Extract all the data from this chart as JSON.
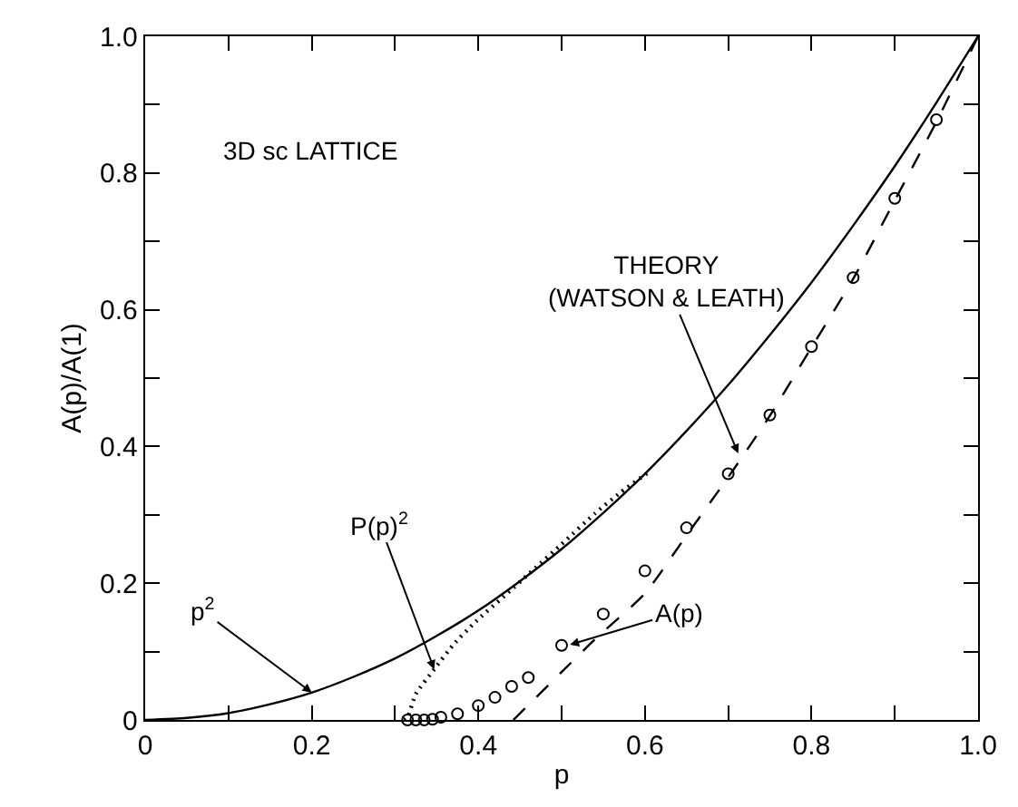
{
  "chart_data": {
    "type": "line",
    "xlabel": "p",
    "ylabel": "A(p)/A(1)",
    "xlim": [
      0,
      1
    ],
    "ylim": [
      0,
      1
    ],
    "xticks": [
      0,
      {
        "value": 0.1,
        "label": null
      },
      0.2,
      {
        "value": 0.3,
        "label": null
      },
      0.4,
      {
        "value": 0.5,
        "label": null
      },
      0.6,
      {
        "value": 0.7,
        "label": null
      },
      0.8,
      {
        "value": 0.9,
        "label": null
      },
      {
        "value": 1,
        "label": "1.0"
      }
    ],
    "yticks": [
      0,
      {
        "value": 0.1,
        "label": null
      },
      0.2,
      {
        "value": 0.3,
        "label": null
      },
      0.4,
      {
        "value": 0.5,
        "label": null
      },
      0.6,
      {
        "value": 0.7,
        "label": null
      },
      0.8,
      {
        "value": 0.9,
        "label": null
      },
      {
        "value": 1,
        "label": "1.0"
      }
    ],
    "series": [
      {
        "color": "#000000",
        "line_style": "solid",
        "marker": "none",
        "x": [
          0,
          0.05,
          0.1,
          0.15,
          0.2,
          0.25,
          0.3,
          0.35,
          0.4,
          0.45,
          0.5,
          0.55,
          0.6,
          0.65,
          0.7,
          0.75,
          0.8,
          0.85,
          0.9,
          0.95,
          1
        ],
        "values": [
          0,
          0.003,
          0.01,
          0.023,
          0.04,
          0.063,
          0.09,
          0.123,
          0.16,
          0.203,
          0.25,
          0.303,
          0.36,
          0.423,
          0.49,
          0.563,
          0.64,
          0.723,
          0.81,
          0.903,
          1
        ]
      },
      {
        "color": "#000000",
        "line_style": "dashed",
        "marker": "none",
        "x": [
          0.442,
          0.5,
          0.54,
          0.6,
          0.65,
          0.7,
          0.75,
          0.8,
          0.85,
          0.9,
          0.95,
          1
        ],
        "values": [
          0,
          0.07,
          0.118,
          0.185,
          0.27,
          0.355,
          0.445,
          0.545,
          0.645,
          0.76,
          0.875,
          1
        ]
      },
      {
        "color": "#000000",
        "line_style": "dotted",
        "marker": "none",
        "x": [
          0.311,
          0.315,
          0.325,
          0.347,
          0.37,
          0.397,
          0.43,
          0.469,
          0.5,
          0.54,
          0.57,
          0.605
        ],
        "values": [
          0,
          0.004,
          0.038,
          0.074,
          0.11,
          0.144,
          0.18,
          0.223,
          0.257,
          0.302,
          0.332,
          0.363
        ]
      },
      {
        "type": "scatter",
        "color": "#000000",
        "marker": "circle",
        "x": [
          0.315,
          0.325,
          0.335,
          0.345,
          0.355,
          0.375,
          0.4,
          0.42,
          0.44,
          0.46,
          0.5,
          0.55,
          0.6,
          0.65,
          0.7,
          0.75,
          0.8,
          0.85,
          0.9,
          0.95
        ],
        "values": [
          0,
          0,
          0,
          0.001,
          0.004,
          0.009,
          0.021,
          0.033,
          0.049,
          0.062,
          0.109,
          0.155,
          0.218,
          0.281,
          0.36,
          0.446,
          0.546,
          0.647,
          0.763,
          0.878
        ]
      }
    ],
    "annotations": [
      "3D sc LATTICE",
      {
        "text": "THEORY\n(WATSON & LEATH)",
        "x": 0.712,
        "y": 0.39
      },
      {
        "text": "P(p)$^{2}$",
        "x": 0.347,
        "y": 0.074
      },
      {
        "text": "A(p)",
        "x": 0.51,
        "y": 0.11
      },
      {
        "text": "p$^{2}$",
        "x": 0.2,
        "y": 0.04
      }
    ]
  }
}
